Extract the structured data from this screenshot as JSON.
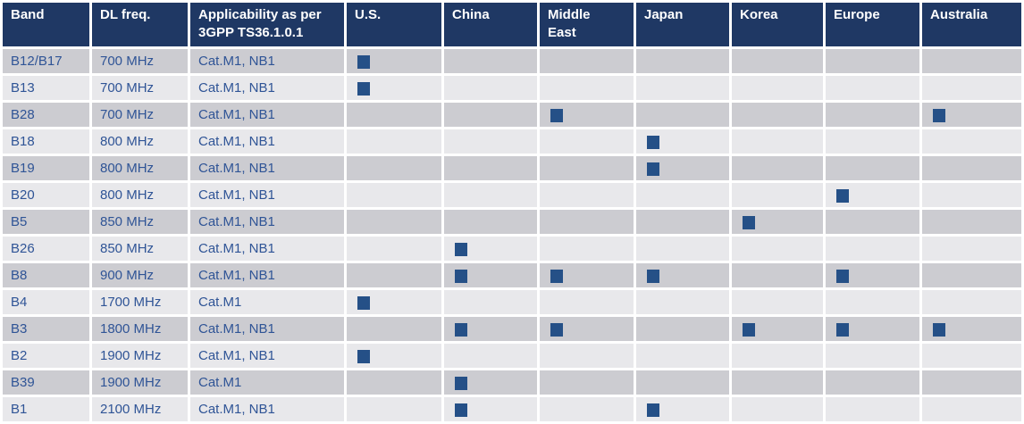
{
  "table": {
    "columns": [
      "Band",
      "DL freq.",
      "Applicability as per 3GPP TS36.1.0.1",
      "U.S.",
      "China",
      "Middle East",
      "Japan",
      "Korea",
      "Europe",
      "Australia"
    ],
    "region_keys": [
      "us",
      "china",
      "middle-east",
      "japan",
      "korea",
      "europe",
      "australia"
    ],
    "rows": [
      {
        "band": "B12/B17",
        "freq": "700 MHz",
        "applicability": "Cat.M1, NB1",
        "regions": [
          1,
          0,
          0,
          0,
          0,
          0,
          0
        ]
      },
      {
        "band": "B13",
        "freq": "700 MHz",
        "applicability": "Cat.M1, NB1",
        "regions": [
          1,
          0,
          0,
          0,
          0,
          0,
          0
        ]
      },
      {
        "band": "B28",
        "freq": "700 MHz",
        "applicability": "Cat.M1, NB1",
        "regions": [
          0,
          0,
          1,
          0,
          0,
          0,
          1
        ]
      },
      {
        "band": "B18",
        "freq": "800 MHz",
        "applicability": "Cat.M1, NB1",
        "regions": [
          0,
          0,
          0,
          1,
          0,
          0,
          0
        ]
      },
      {
        "band": "B19",
        "freq": "800 MHz",
        "applicability": "Cat.M1, NB1",
        "regions": [
          0,
          0,
          0,
          1,
          0,
          0,
          0
        ]
      },
      {
        "band": "B20",
        "freq": "800 MHz",
        "applicability": "Cat.M1, NB1",
        "regions": [
          0,
          0,
          0,
          0,
          0,
          1,
          0
        ]
      },
      {
        "band": "B5",
        "freq": "850 MHz",
        "applicability": "Cat.M1, NB1",
        "regions": [
          0,
          0,
          0,
          0,
          1,
          0,
          0
        ]
      },
      {
        "band": "B26",
        "freq": "850 MHz",
        "applicability": "Cat.M1, NB1",
        "regions": [
          0,
          1,
          0,
          0,
          0,
          0,
          0
        ]
      },
      {
        "band": "B8",
        "freq": "900 MHz",
        "applicability": "Cat.M1, NB1",
        "regions": [
          0,
          1,
          1,
          1,
          0,
          1,
          0
        ]
      },
      {
        "band": "B4",
        "freq": "1700 MHz",
        "applicability": "Cat.M1",
        "regions": [
          1,
          0,
          0,
          0,
          0,
          0,
          0
        ]
      },
      {
        "band": "B3",
        "freq": "1800 MHz",
        "applicability": "Cat.M1, NB1",
        "regions": [
          0,
          1,
          1,
          0,
          1,
          1,
          1
        ]
      },
      {
        "band": "B2",
        "freq": "1900 MHz",
        "applicability": "Cat.M1, NB1",
        "regions": [
          1,
          0,
          0,
          0,
          0,
          0,
          0
        ]
      },
      {
        "band": "B39",
        "freq": "1900 MHz",
        "applicability": "Cat.M1",
        "regions": [
          0,
          1,
          0,
          0,
          0,
          0,
          0
        ]
      },
      {
        "band": "B1",
        "freq": "2100 MHz",
        "applicability": "Cat.M1, NB1",
        "regions": [
          0,
          1,
          0,
          1,
          0,
          0,
          0
        ]
      }
    ]
  },
  "icons": {
    "availability_marker": "square-icon"
  },
  "colors": {
    "header_bg": "#1F3864",
    "header_text": "#FFFFFF",
    "row_dark": "#CCCCD1",
    "row_light": "#E8E8EB",
    "body_text": "#2F5496",
    "square": "#255087",
    "gap": "#FFFFFF"
  }
}
